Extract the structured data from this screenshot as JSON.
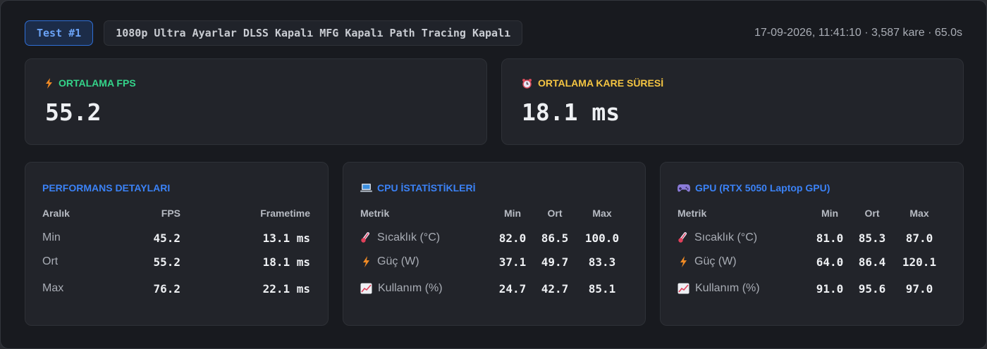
{
  "header": {
    "test_badge": "Test #1",
    "settings": "1080p Ultra Ayarlar DLSS Kapalı MFG Kapalı Path Tracing Kapalı",
    "meta": "17-09-2026, 11:41:10 · 3,587 kare · 65.0s"
  },
  "stats": {
    "avg_fps": {
      "label": "ORTALAMA FPS",
      "value": "55.2",
      "icon": "lightning-icon"
    },
    "avg_frametime": {
      "label": "ORTALAMA KARE SÜRESİ",
      "value": "18.1 ms",
      "icon": "alarm-clock-icon"
    }
  },
  "performance": {
    "title": "PERFORMANS DETAYLARI",
    "columns": [
      "Aralık",
      "FPS",
      "Frametime"
    ],
    "rows": [
      {
        "label": "Min",
        "fps": "45.2",
        "frametime": "13.1 ms"
      },
      {
        "label": "Ort",
        "fps": "55.2",
        "frametime": "18.1 ms"
      },
      {
        "label": "Max",
        "fps": "76.2",
        "frametime": "22.1 ms"
      }
    ]
  },
  "cpu": {
    "title": "CPU İSTATİSTİKLERİ",
    "icon": "laptop-icon",
    "columns": [
      "Metrik",
      "Min",
      "Ort",
      "Max"
    ],
    "rows": [
      {
        "icon": "thermometer-icon",
        "label": "Sıcaklık (°C)",
        "min": "82.0",
        "avg": "86.5",
        "max": "100.0"
      },
      {
        "icon": "lightning-icon",
        "label": "Güç (W)",
        "min": "37.1",
        "avg": "49.7",
        "max": "83.3"
      },
      {
        "icon": "chart-increasing-icon",
        "label": "Kullanım (%)",
        "min": "24.7",
        "avg": "42.7",
        "max": "85.1"
      }
    ]
  },
  "gpu": {
    "title": "GPU (RTX 5050 Laptop GPU)",
    "icon": "gamepad-icon",
    "columns": [
      "Metrik",
      "Min",
      "Ort",
      "Max"
    ],
    "rows": [
      {
        "icon": "thermometer-icon",
        "label": "Sıcaklık (°C)",
        "min": "81.0",
        "avg": "85.3",
        "max": "87.0"
      },
      {
        "icon": "lightning-icon",
        "label": "Güç (W)",
        "min": "64.0",
        "avg": "86.4",
        "max": "120.1"
      },
      {
        "icon": "chart-increasing-icon",
        "label": "Kullanım (%)",
        "min": "91.0",
        "avg": "95.6",
        "max": "97.0"
      }
    ]
  },
  "colors": {
    "accent_blue": "#3b82f6",
    "fps_green": "#34d48a",
    "frametime_yellow": "#f5c542",
    "background": "#181a1f",
    "card": "#22242a"
  }
}
